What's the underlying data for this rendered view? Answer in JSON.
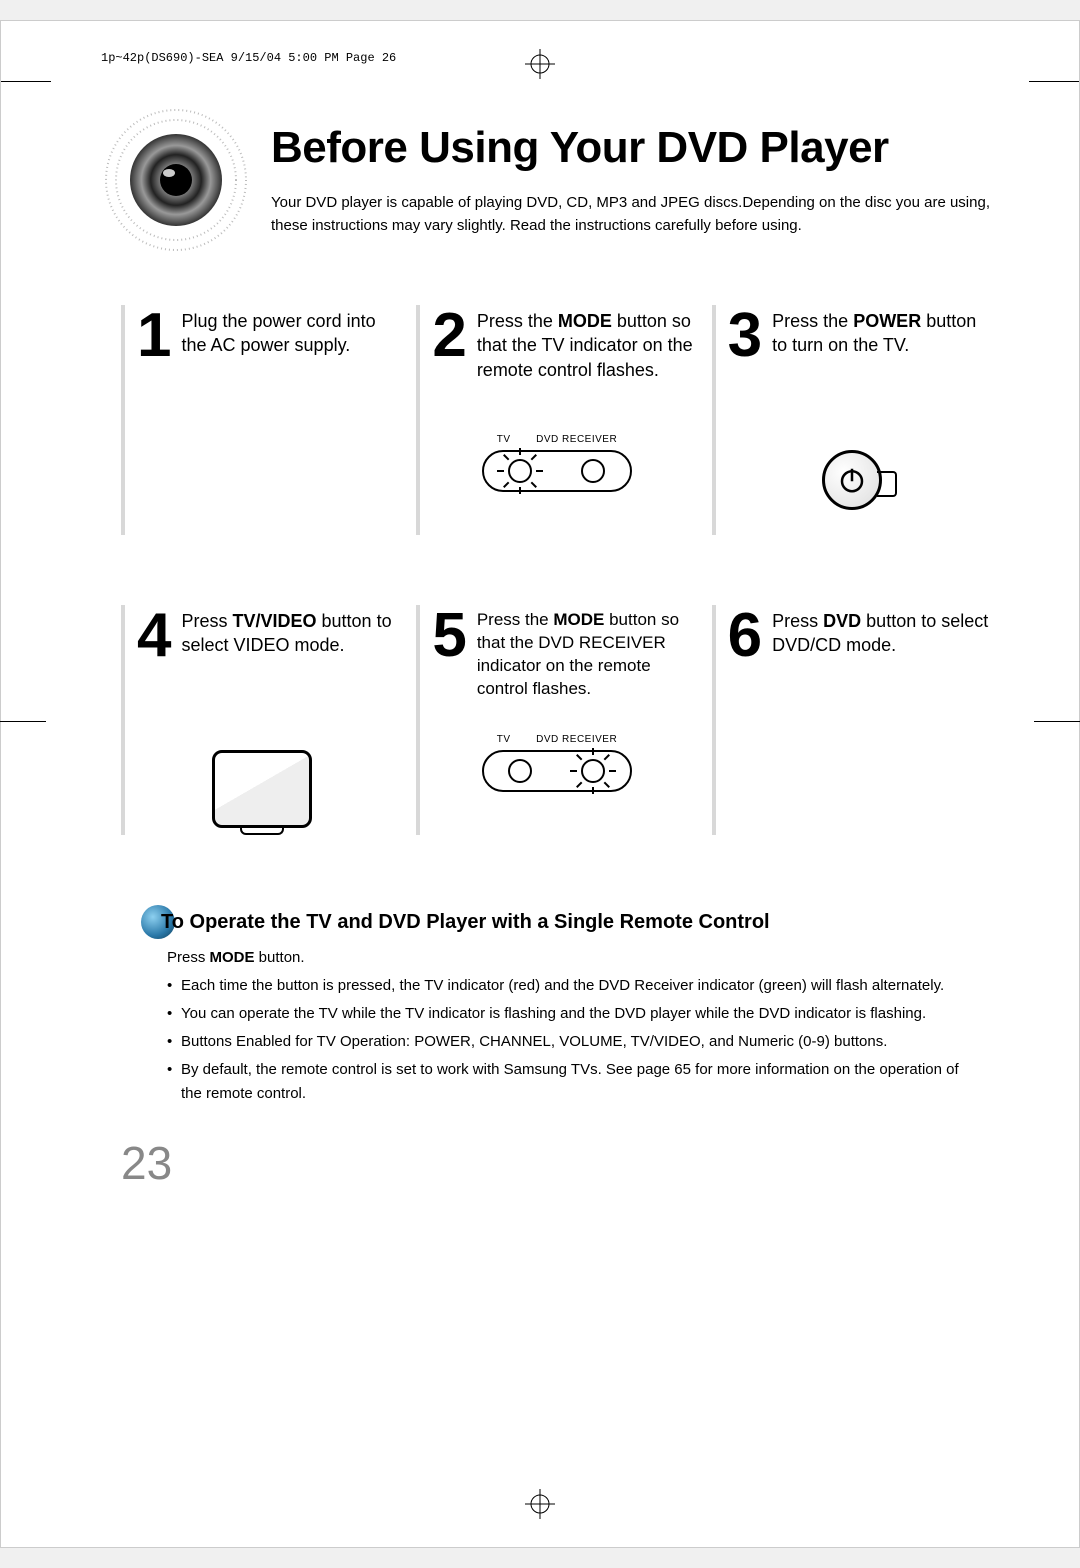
{
  "slug": "1p~42p(DS690)-SEA  9/15/04 5:00 PM  Page 26",
  "title": "Before Using Your DVD Player",
  "intro": "Your DVD player is capable of playing DVD, CD, MP3 and JPEG discs.Depending on the disc you are using, these instructions may vary slightly. Read the instructions carefully before using.",
  "steps": [
    {
      "num": "1",
      "html": "Plug the power cord into the AC power supply."
    },
    {
      "num": "2",
      "html": "Press the <strong>MODE</strong> button so that the TV indicator on the remote control flashes."
    },
    {
      "num": "3",
      "html": "Press the <strong>POWER</strong> button to turn on the TV."
    },
    {
      "num": "4",
      "html": "Press <strong>TV/VIDEO</strong> button to select VIDEO mode."
    },
    {
      "num": "5",
      "html": "Press the <strong>MODE</strong> button so that the DVD RECEIVER indicator on the remote control flashes."
    },
    {
      "num": "6",
      "html": "Press <strong>DVD</strong> button to select DVD/CD mode."
    }
  ],
  "mode_labels": {
    "tv": "TV",
    "dvd": "DVD RECEIVER"
  },
  "section": {
    "title": "To Operate the TV and DVD Player with a Single Remote Control",
    "sub_html": "Press <strong>MODE</strong> button.",
    "bullets": [
      "Each time the button is pressed, the TV indicator (red) and the DVD Receiver indicator (green) will flash alternately.",
      "You can operate the TV while the TV indicator is flashing and the DVD player while the DVD indicator is flashing.",
      "Buttons Enabled for TV Operation: POWER, CHANNEL, VOLUME, TV/VIDEO, and Numeric (0-9) buttons.",
      "By default, the remote control is set to work with Samsung TVs. See page 65 for more information on the operation of the remote control."
    ]
  },
  "page_number": "23",
  "colors": {
    "accent_border": "#d8d8d8",
    "page_num_color": "#888888",
    "bullet_gradient_light": "#8dd0f0",
    "bullet_gradient_dark": "#0d3a55"
  }
}
